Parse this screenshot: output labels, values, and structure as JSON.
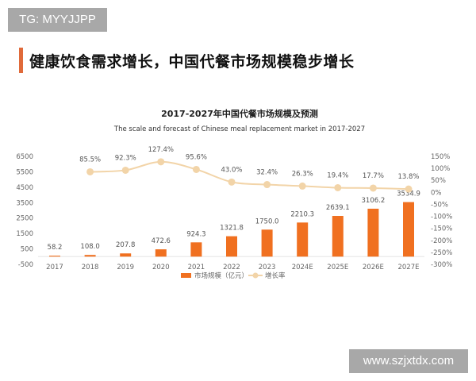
{
  "watermark_top": "TG: MYYJJPP",
  "watermark_bottom": "www.szjxtdx.com",
  "headline": "健康饮食需求增长，中国代餐市场规模稳步增长",
  "chart_data": {
    "type": "bar+line",
    "title": "2017-2027年中国代餐市场规模及预测",
    "subtitle": "The scale and forecast of Chinese meal replacement market in 2017-2027",
    "categories": [
      "2017",
      "2018",
      "2019",
      "2020",
      "2021",
      "2022",
      "2023",
      "2024E",
      "2025E",
      "2026E",
      "2027E"
    ],
    "series": [
      {
        "name": "市场规模（亿元）",
        "type": "bar",
        "axis": "left",
        "color": "#f07020",
        "values": [
          58.2,
          108.0,
          207.8,
          472.6,
          924.3,
          1321.8,
          1750.0,
          2210.3,
          2639.1,
          3106.2,
          3534.9
        ],
        "labels": [
          "58.2",
          "108.0",
          "207.8",
          "472.6",
          "924.3",
          "1321.8",
          "1750.0",
          "2210.3",
          "2639.1",
          "3106.2",
          "3534.9"
        ]
      },
      {
        "name": "增长率",
        "type": "line",
        "axis": "right",
        "color": "#f2d4a8",
        "values": [
          null,
          85.5,
          92.3,
          127.4,
          95.6,
          43.0,
          32.4,
          26.3,
          19.4,
          17.7,
          13.8
        ],
        "labels": [
          "",
          "85.5%",
          "92.3%",
          "127.4%",
          "95.6%",
          "43.0%",
          "32.4%",
          "26.3%",
          "19.4%",
          "17.7%",
          "13.8%"
        ]
      }
    ],
    "left_axis": {
      "range": [
        -500,
        6500
      ],
      "ticks": [
        "6500",
        "5500",
        "4500",
        "3500",
        "2500",
        "1500",
        "500",
        "-500"
      ]
    },
    "right_axis": {
      "range": [
        -300,
        150
      ],
      "ticks": [
        "150%",
        "100%",
        "50%",
        "0%",
        "-50%",
        "-100%",
        "-150%",
        "-200%",
        "-250%",
        "-300%"
      ]
    },
    "grid": false,
    "legend": "bottom"
  }
}
